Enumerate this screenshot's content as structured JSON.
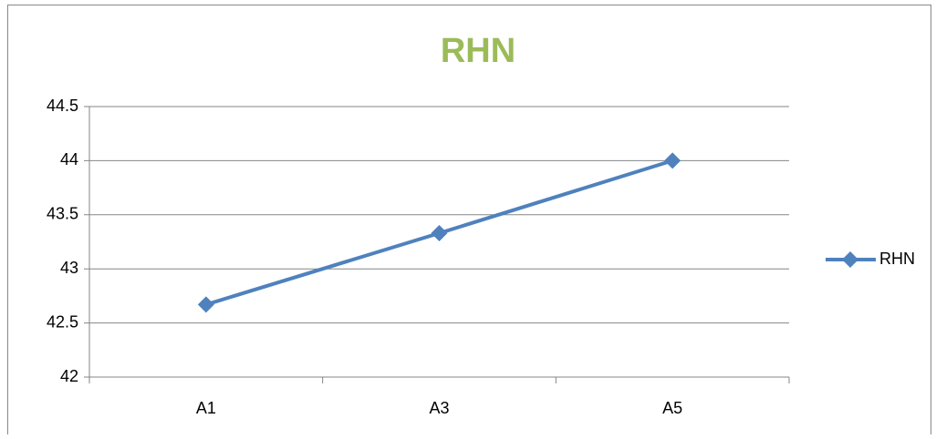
{
  "chart_data": {
    "type": "line",
    "title": "RHN",
    "categories": [
      "A1",
      "A3",
      "A5"
    ],
    "series": [
      {
        "name": "RHN",
        "color": "#4f81bd",
        "values": [
          42.67,
          43.33,
          44
        ]
      }
    ],
    "ylim": [
      42,
      44.5
    ],
    "yticks": [
      42,
      42.5,
      43,
      43.5,
      44,
      44.5
    ],
    "grid": true,
    "legend": "right",
    "title_color": "#9bbb59"
  }
}
